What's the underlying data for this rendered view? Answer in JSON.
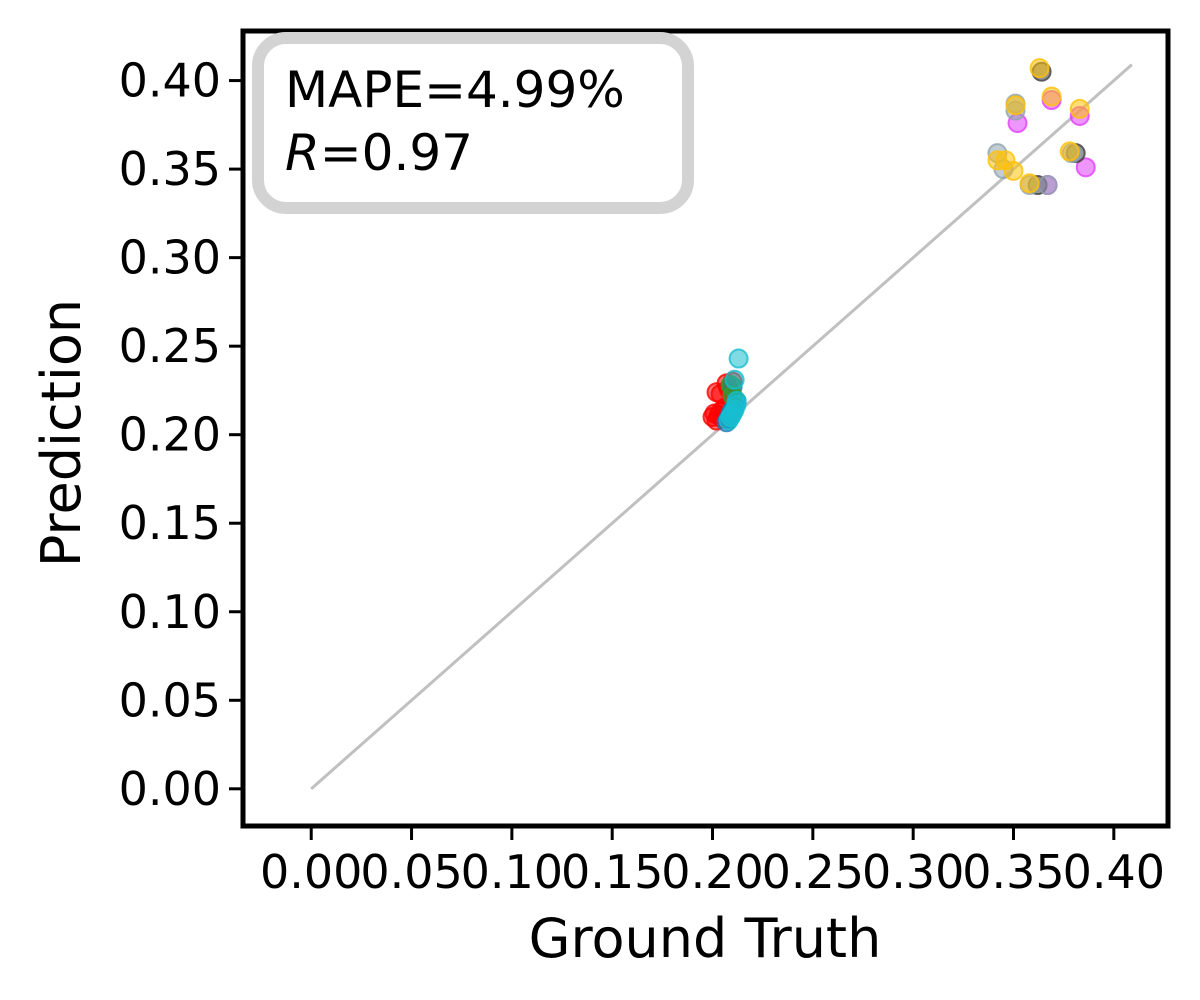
{
  "chart_data": {
    "type": "scatter",
    "xlabel": "Ground Truth",
    "ylabel": "Prediction",
    "xlim": [
      -0.034,
      0.427
    ],
    "ylim": [
      -0.021,
      0.428
    ],
    "xticks": [
      "0.00",
      "0.05",
      "0.10",
      "0.15",
      "0.20",
      "0.25",
      "0.30",
      "0.35",
      "0.40"
    ],
    "yticks": [
      "0.00",
      "0.05",
      "0.10",
      "0.15",
      "0.20",
      "0.25",
      "0.30",
      "0.35",
      "0.40"
    ],
    "grid": false,
    "reference_line": {
      "x": [
        0.0,
        0.409
      ],
      "y": [
        0.0,
        0.409
      ],
      "color": "#c0c0c0"
    },
    "annotation": {
      "mape_label": "MAPE=4.99%",
      "r_label": "R",
      "r_value": "=0.97",
      "position": "top-left"
    },
    "series": [
      {
        "color": "#ff0000",
        "points": [
          [
            0.2,
            0.21
          ],
          [
            0.201,
            0.212
          ],
          [
            0.202,
            0.208
          ],
          [
            0.203,
            0.211
          ],
          [
            0.204,
            0.213
          ],
          [
            0.205,
            0.209
          ],
          [
            0.206,
            0.214
          ],
          [
            0.202,
            0.224
          ],
          [
            0.204,
            0.223
          ],
          [
            0.207,
            0.229
          ],
          [
            0.208,
            0.226
          ],
          [
            0.21,
            0.23
          ],
          [
            0.206,
            0.215
          ]
        ]
      },
      {
        "color": "#1f77b4",
        "points": [
          [
            0.207,
            0.207
          ],
          [
            0.208,
            0.209
          ],
          [
            0.209,
            0.212
          ],
          [
            0.21,
            0.214
          ],
          [
            0.211,
            0.216
          ],
          [
            0.212,
            0.219
          ],
          [
            0.21,
            0.227
          ]
        ]
      },
      {
        "color": "#2ca02c",
        "points": [
          [
            0.209,
            0.228
          ],
          [
            0.21,
            0.222
          ]
        ]
      },
      {
        "color": "#17becf",
        "points": [
          [
            0.208,
            0.208
          ],
          [
            0.209,
            0.21
          ],
          [
            0.21,
            0.212
          ],
          [
            0.211,
            0.214
          ],
          [
            0.212,
            0.217
          ],
          [
            0.213,
            0.243
          ],
          [
            0.211,
            0.231
          ],
          [
            0.209,
            0.21
          ],
          [
            0.212,
            0.219
          ]
        ]
      },
      {
        "color": "#e040fb",
        "points": [
          [
            0.352,
            0.376
          ],
          [
            0.369,
            0.389
          ],
          [
            0.367,
            0.341
          ],
          [
            0.386,
            0.351
          ],
          [
            0.383,
            0.38
          ]
        ]
      },
      {
        "color": "#404040",
        "points": [
          [
            0.364,
            0.405
          ],
          [
            0.362,
            0.341
          ],
          [
            0.381,
            0.359
          ]
        ]
      },
      {
        "color": "#90a4ae",
        "points": [
          [
            0.342,
            0.359
          ],
          [
            0.351,
            0.387
          ],
          [
            0.351,
            0.383
          ],
          [
            0.358,
            0.341
          ],
          [
            0.367,
            0.341
          ],
          [
            0.379,
            0.359
          ],
          [
            0.345,
            0.35
          ]
        ]
      },
      {
        "color": "#ffc107",
        "points": [
          [
            0.363,
            0.407
          ],
          [
            0.351,
            0.386
          ],
          [
            0.369,
            0.391
          ],
          [
            0.383,
            0.384
          ],
          [
            0.342,
            0.355
          ],
          [
            0.346,
            0.355
          ],
          [
            0.358,
            0.342
          ],
          [
            0.378,
            0.36
          ],
          [
            0.35,
            0.349
          ]
        ]
      }
    ]
  }
}
